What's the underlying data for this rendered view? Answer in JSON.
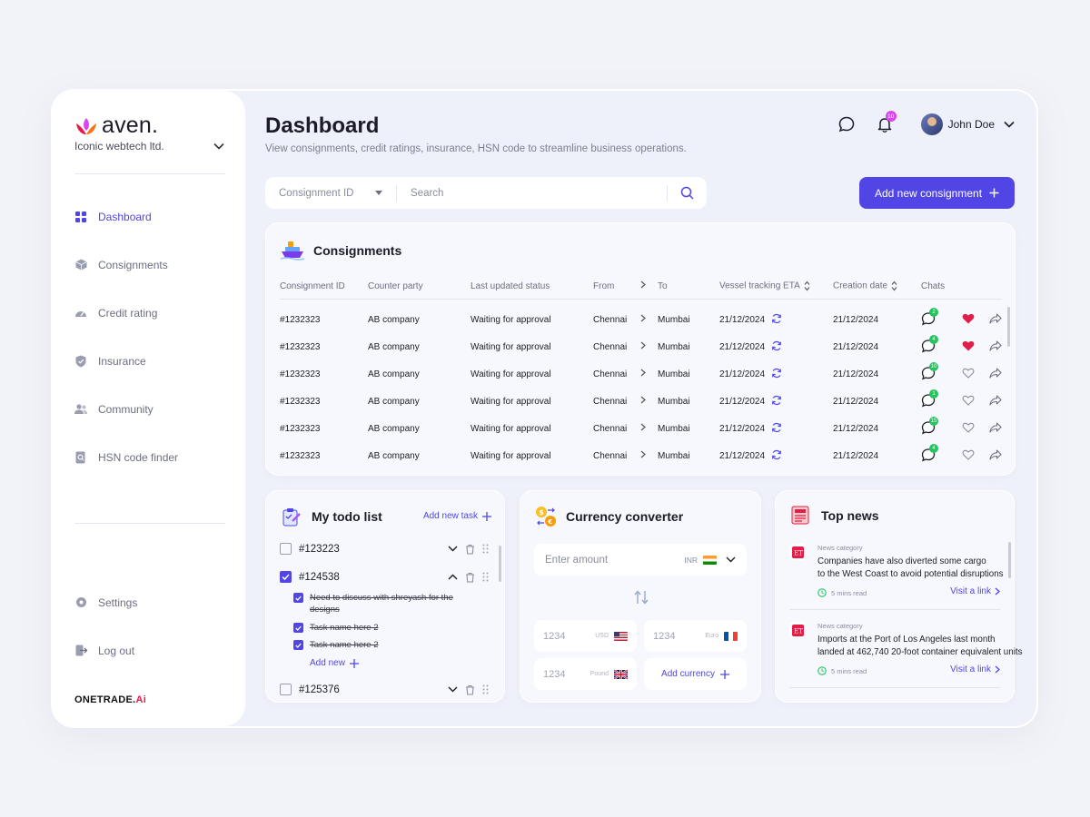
{
  "brand": {
    "name": "aven.",
    "org": "Iconic webtech ltd."
  },
  "nav": [
    {
      "label": "Dashboard",
      "icon": "grid-icon",
      "active": true
    },
    {
      "label": "Consignments",
      "icon": "box-icon"
    },
    {
      "label": "Credit rating",
      "icon": "gauge-icon"
    },
    {
      "label": "Insurance",
      "icon": "shield-icon"
    },
    {
      "label": "Community",
      "icon": "users-icon"
    },
    {
      "label": "HSN code finder",
      "icon": "doc-search-icon"
    }
  ],
  "bottom_nav": [
    {
      "label": "Settings",
      "icon": "gear-icon"
    },
    {
      "label": "Log out",
      "icon": "logout-icon"
    }
  ],
  "footer": {
    "logo_main": "ONETRADE.",
    "logo_accent": "Ai"
  },
  "header": {
    "title": "Dashboard",
    "subtitle": "View consignments, credit ratings, insurance, HSN code to streamline business operations.",
    "notification_count": "10",
    "user_name": "John Doe"
  },
  "search": {
    "filter_value": "Consignment ID",
    "placeholder": "Search"
  },
  "add_consignment": "Add new consignment",
  "consignments": {
    "title": "Consignments",
    "columns": [
      "Consignment ID",
      "Counter party",
      "Last updated status",
      "From",
      "To",
      "Vessel tracking ETA",
      "Creation date",
      "Chats"
    ],
    "rows": [
      {
        "id": "#1232323",
        "party": "AB company",
        "status": "Waiting for approval",
        "from": "Chennai",
        "to": "Mumbai",
        "eta": "21/12/2024",
        "created": "21/12/2024",
        "chats": "2",
        "favorite": true
      },
      {
        "id": "#1232323",
        "party": "AB company",
        "status": "Waiting for approval",
        "from": "Chennai",
        "to": "Mumbai",
        "eta": "21/12/2024",
        "created": "21/12/2024",
        "chats": "4",
        "favorite": true
      },
      {
        "id": "#1232323",
        "party": "AB company",
        "status": "Waiting for approval",
        "from": "Chennai",
        "to": "Mumbai",
        "eta": "21/12/2024",
        "created": "21/12/2024",
        "chats": "10",
        "favorite": false
      },
      {
        "id": "#1232323",
        "party": "AB company",
        "status": "Waiting for approval",
        "from": "Chennai",
        "to": "Mumbai",
        "eta": "21/12/2024",
        "created": "21/12/2024",
        "chats": "1",
        "favorite": false
      },
      {
        "id": "#1232323",
        "party": "AB company",
        "status": "Waiting for approval",
        "from": "Chennai",
        "to": "Mumbai",
        "eta": "21/12/2024",
        "created": "21/12/2024",
        "chats": "15",
        "favorite": false
      },
      {
        "id": "#1232323",
        "party": "AB company",
        "status": "Waiting for approval",
        "from": "Chennai",
        "to": "Mumbai",
        "eta": "21/12/2024",
        "created": "21/12/2024",
        "chats": "4",
        "favorite": false
      }
    ]
  },
  "todo": {
    "title": "My todo list",
    "add_task": "Add new task",
    "items": [
      {
        "id": "#123223",
        "checked": false,
        "expanded": false
      },
      {
        "id": "#124538",
        "checked": true,
        "expanded": true
      },
      {
        "id": "#125376",
        "checked": false,
        "expanded": false
      }
    ],
    "subtasks": [
      "Need to discuss with shreyash for the designs",
      "Task name here 2",
      "Task name here 2"
    ],
    "add_new": "Add new"
  },
  "currency": {
    "title": "Currency converter",
    "amount_placeholder": "Enter amount",
    "base_currency": "INR",
    "values": [
      {
        "amount": "1234",
        "code": "USD"
      },
      {
        "amount": "1234",
        "code": "Euro"
      },
      {
        "amount": "1234",
        "code": "Pound"
      }
    ],
    "add_currency": "Add currency"
  },
  "news": {
    "title": "Top news",
    "items": [
      {
        "category": "News category",
        "line1": "Companies have also diverted some cargo",
        "line2": "to the West Coast to avoid potential disruptions",
        "time": "5 mins read",
        "link": "Visit a link"
      },
      {
        "category": "News category",
        "line1": "Imports at the Port of Los Angeles last month",
        "line2": "landed at 462,740 20-foot container equivalent units",
        "time": "5 mins read",
        "link": "Visit a link"
      }
    ]
  },
  "colors": {
    "accent": "#5145e5",
    "favorite": "#e11d48",
    "chat_badge": "#22c55e",
    "notification": "#d946ef"
  }
}
